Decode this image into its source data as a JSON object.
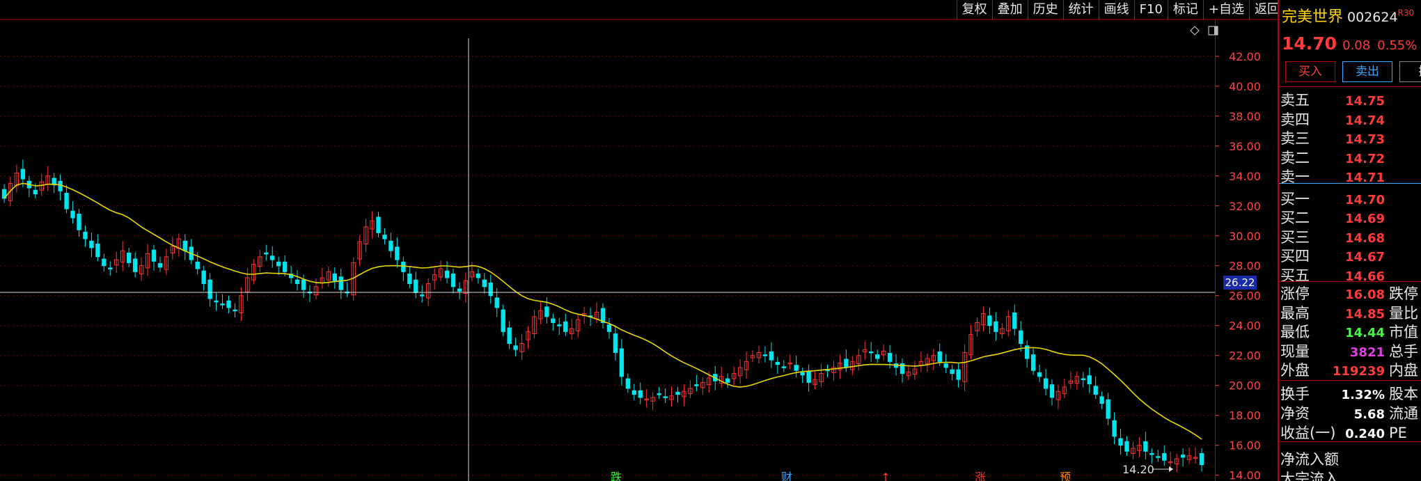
{
  "toolbar": {
    "buttons": [
      "复权",
      "叠加",
      "历史",
      "统计",
      "画线",
      "F10",
      "标记",
      "+自选",
      "返回"
    ]
  },
  "stock": {
    "name": "完美世界",
    "code": "002624",
    "tag": "R30",
    "price": "14.70",
    "change": "0.08",
    "change_pct": "0.55%"
  },
  "trade_buttons": {
    "buy": "买入",
    "sell": "卖出",
    "cancel": "撤"
  },
  "order_book": {
    "asks": [
      {
        "label": "卖五",
        "price": "14.75"
      },
      {
        "label": "卖四",
        "price": "14.74"
      },
      {
        "label": "卖三",
        "price": "14.73"
      },
      {
        "label": "卖二",
        "price": "14.72"
      },
      {
        "label": "卖一",
        "price": "14.71"
      }
    ],
    "bids": [
      {
        "label": "买一",
        "price": "14.70"
      },
      {
        "label": "买二",
        "price": "14.69"
      },
      {
        "label": "买三",
        "price": "14.68"
      },
      {
        "label": "买四",
        "price": "14.67"
      },
      {
        "label": "买五",
        "price": "14.66"
      }
    ]
  },
  "stats": [
    {
      "label": "涨停",
      "value": "16.08",
      "suffix": "跌停",
      "color": "red"
    },
    {
      "label": "最高",
      "value": "14.85",
      "suffix": "量比",
      "color": "red"
    },
    {
      "label": "最低",
      "value": "14.44",
      "suffix": "市值",
      "color": "green"
    },
    {
      "label": "现量",
      "value": "3821",
      "suffix": "总手",
      "color": "magenta"
    },
    {
      "label": "外盘",
      "value": "119239",
      "suffix": "内盘",
      "color": "red"
    }
  ],
  "fundamentals": [
    {
      "label": "换手",
      "value": "1.32%",
      "suffix": "股本"
    },
    {
      "label": "净资",
      "value": "5.68",
      "suffix": "流通"
    },
    {
      "label": "收益(一)",
      "value": "0.240",
      "suffix": "PE"
    }
  ],
  "flow": {
    "net_inflow_label": "净流入额",
    "large_inflow_label": "大宗流入"
  },
  "chart": {
    "crosshair_price": "26.22",
    "low_annotation": "14.20",
    "event_markers": [
      "跌",
      "财",
      "↑",
      "涨",
      "预"
    ],
    "icons": [
      "diamond-icon",
      "panel-toggle-icon"
    ],
    "colors": {
      "up": "#ff3333",
      "down": "#00e5ee",
      "ma": "#e8d800",
      "grid": "#7a0000",
      "axis_text": "#ff4444"
    }
  },
  "chart_data": {
    "type": "candlestick",
    "y_ticks": [
      "42.00",
      "40.00",
      "38.00",
      "36.00",
      "34.00",
      "32.00",
      "30.00",
      "28.00",
      "26.00",
      "24.00",
      "22.00",
      "20.00",
      "18.00",
      "16.00",
      "14.00"
    ],
    "ylim": [
      13.8,
      43.2
    ],
    "close_values": [
      32.5,
      33.5,
      34.2,
      33.8,
      33.2,
      32.8,
      33.6,
      34.0,
      33.4,
      33.0,
      31.8,
      31.2,
      30.4,
      29.8,
      29.2,
      28.6,
      28.0,
      27.8,
      28.4,
      29.0,
      28.2,
      27.6,
      28.0,
      28.8,
      28.3,
      27.9,
      28.6,
      29.3,
      29.8,
      29.0,
      28.4,
      27.8,
      26.8,
      25.8,
      25.6,
      25.4,
      25.2,
      25.0,
      26.0,
      27.2,
      28.1,
      28.6,
      28.8,
      28.4,
      28.0,
      27.6,
      27.2,
      26.8,
      26.4,
      26.2,
      26.6,
      27.2,
      27.6,
      27.0,
      26.4,
      26.2,
      28.2,
      29.6,
      30.6,
      31.0,
      30.2,
      29.8,
      29.0,
      28.4,
      27.6,
      26.8,
      26.2,
      26.0,
      26.8,
      27.4,
      27.8,
      27.2,
      26.6,
      26.3,
      27.0,
      27.6,
      27.2,
      26.6,
      26.0,
      25.2,
      23.6,
      22.8,
      22.4,
      22.8,
      23.6,
      24.6,
      25.0,
      24.6,
      24.2,
      24.0,
      23.6,
      23.8,
      24.4,
      24.8,
      24.6,
      24.9,
      24.2,
      23.6,
      22.2,
      20.6,
      19.8,
      19.4,
      19.2,
      19.1,
      19.2,
      19.4,
      19.2,
      19.3,
      19.4,
      19.6,
      19.8,
      20.0,
      20.2,
      20.5,
      20.3,
      20.6,
      20.2,
      20.8,
      21.2,
      21.6,
      22.0,
      22.2,
      22.0,
      21.7,
      21.4,
      21.2,
      21.5,
      21.0,
      20.7,
      20.2,
      20.4,
      20.8,
      21.0,
      21.2,
      21.5,
      21.2,
      21.6,
      22.0,
      22.4,
      22.2,
      21.8,
      22.3,
      21.6,
      21.2,
      20.8,
      20.9,
      21.1,
      21.6,
      21.8,
      22.0,
      21.6,
      21.2,
      20.8,
      20.4,
      22.2,
      23.4,
      24.2,
      24.8,
      24.0,
      23.6,
      23.8,
      24.6,
      23.8,
      22.8,
      21.8,
      21.0,
      20.6,
      19.8,
      19.2,
      19.6,
      19.9,
      20.3,
      20.6,
      20.4,
      20.1,
      19.4,
      18.8,
      17.8,
      16.6,
      16.0,
      15.6,
      15.8,
      16.0,
      15.6,
      15.4,
      15.2,
      15.0,
      14.9,
      15.1,
      15.2,
      15.3,
      15.2,
      14.7
    ]
  }
}
